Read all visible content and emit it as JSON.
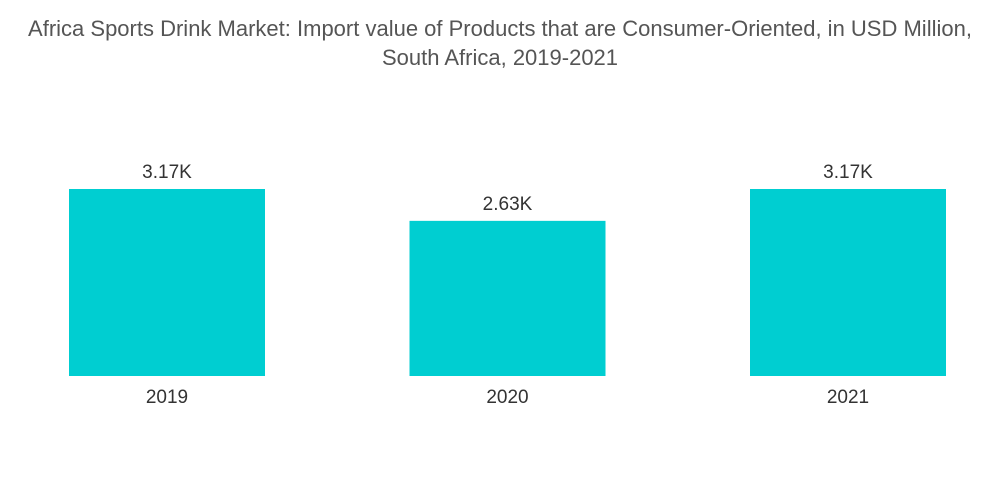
{
  "chart_data": {
    "type": "bar",
    "title": "Africa Sports Drink Market: Import value of Products that are Consumer-Oriented, in USD Million, South Africa, 2019-2021",
    "categories": [
      "2019",
      "2020",
      "2021"
    ],
    "values": [
      3170,
      2630,
      3170
    ],
    "value_labels": [
      "3.17K",
      "2.63K",
      "3.17K"
    ],
    "xlabel": "",
    "ylabel": "",
    "ylim": [
      0,
      3170
    ],
    "grid": false,
    "legend": "none",
    "bar_color": "#00CED1"
  }
}
